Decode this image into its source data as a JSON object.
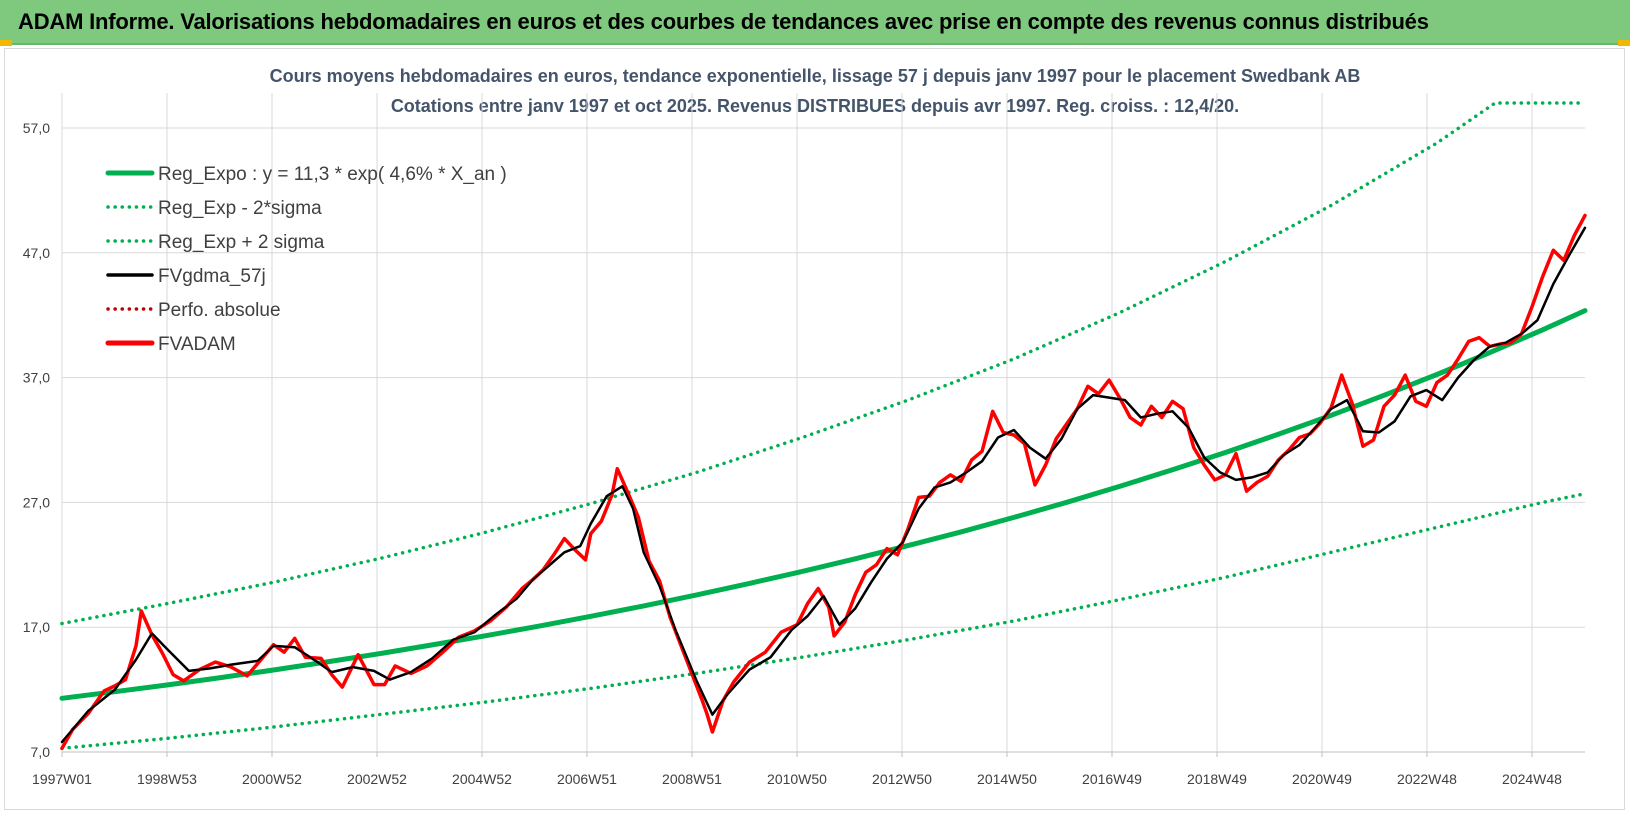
{
  "banner": {
    "title": "ADAM Informe. Valorisations hebdomadaires en euros et des courbes de tendances avec prise en compte des revenus connus distribués"
  },
  "chart_data": {
    "type": "line",
    "title": "Cours moyens hebdomadaires en euros, tendance exponentielle, lissage 57 j depuis janv 1997 pour le placement Swedbank AB",
    "subtitle": "Cotations entre janv 1997 et oct 2025. Revenus DISTRIBUES depuis avr 1997. Reg. croiss. : 12,4/20.",
    "xlabel": "",
    "ylabel": "",
    "x_tick_labels": [
      "1997W01",
      "1998W53",
      "2000W52",
      "2002W52",
      "2004W52",
      "2006W51",
      "2008W51",
      "2010W50",
      "2012W50",
      "2014W50",
      "2016W49",
      "2018W49",
      "2020W49",
      "2022W48",
      "2024W48"
    ],
    "x_range": [
      1997.0,
      2025.8
    ],
    "ylim": [
      7,
      57
    ],
    "y_tick_labels": [
      "7,0",
      "17,0",
      "27,0",
      "37,0",
      "47,0",
      "57,0"
    ],
    "y_ticks": [
      7,
      17,
      27,
      37,
      47,
      57
    ],
    "grid": true,
    "legend_position": "top-left",
    "series": [
      {
        "name": "Reg_Expo : y = 11,3 * exp( 4,6% *  X_an )",
        "style": "solid",
        "color": "#00b050",
        "x": [
          1997,
          1998,
          1999,
          2000,
          2001,
          2002,
          2003,
          2004,
          2005,
          2006,
          2007,
          2008,
          2009,
          2010,
          2011,
          2012,
          2013,
          2014,
          2015,
          2016,
          2017,
          2018,
          2019,
          2020,
          2021,
          2022,
          2023,
          2024,
          2025,
          2025.8
        ],
        "y": [
          11.3,
          11.83,
          12.38,
          12.96,
          13.57,
          14.21,
          14.88,
          15.58,
          16.31,
          17.07,
          17.87,
          18.71,
          19.59,
          20.51,
          21.47,
          22.48,
          23.54,
          24.64,
          25.8,
          27.01,
          28.28,
          29.61,
          31.0,
          32.46,
          33.98,
          35.58,
          37.25,
          39.0,
          40.83,
          42.37
        ]
      },
      {
        "name": "Reg_Exp - 2*sigma",
        "style": "dotted",
        "color": "#00b050",
        "x": [
          1997,
          1999,
          2001,
          2003,
          2005,
          2007,
          2009,
          2011,
          2013,
          2015,
          2017,
          2019,
          2021,
          2023,
          2025,
          2025.8
        ],
        "y": [
          7.3,
          8.1,
          9.0,
          10.0,
          11.0,
          12.1,
          13.3,
          14.6,
          16.0,
          17.5,
          19.2,
          21.0,
          23.0,
          25.0,
          27.0,
          27.7
        ]
      },
      {
        "name": "Reg_Exp + 2 sigma",
        "style": "dotted",
        "color": "#00b050",
        "x": [
          1997,
          1999,
          2001,
          2003,
          2005,
          2007,
          2009,
          2011,
          2013,
          2015,
          2017,
          2019,
          2021,
          2023,
          2024.1,
          2025.8
        ],
        "y": [
          17.3,
          18.9,
          20.6,
          22.5,
          24.6,
          26.9,
          29.4,
          32.2,
          35.2,
          38.5,
          42.2,
          46.3,
          50.8,
          55.8,
          59.0,
          59.0
        ]
      },
      {
        "name": "FVgdma_57j",
        "style": "solid",
        "color": "#000000",
        "x": [
          1997,
          1997.5,
          1998,
          1998.4,
          1998.7,
          1999,
          1999.4,
          1999.8,
          2000.2,
          2000.7,
          2001,
          2001.4,
          2001.8,
          2002.1,
          2002.5,
          2002.9,
          2003.2,
          2003.6,
          2004,
          2004.4,
          2004.8,
          2005.2,
          2005.6,
          2005.9,
          2006.2,
          2006.5,
          2006.8,
          2007,
          2007.3,
          2007.6,
          2007.8,
          2008,
          2008.3,
          2008.6,
          2009,
          2009.3,
          2009.6,
          2010,
          2010.4,
          2010.8,
          2011.1,
          2011.4,
          2011.7,
          2012,
          2012.3,
          2012.6,
          2012.9,
          2013.2,
          2013.5,
          2013.8,
          2014.1,
          2014.4,
          2014.7,
          2015,
          2015.3,
          2015.6,
          2015.9,
          2016.2,
          2016.5,
          2016.8,
          2017.1,
          2017.4,
          2017.7,
          2018,
          2018.3,
          2018.6,
          2018.9,
          2019.2,
          2019.5,
          2019.8,
          2020.1,
          2020.4,
          2020.7,
          2021,
          2021.3,
          2021.6,
          2021.9,
          2022.2,
          2022.5,
          2022.8,
          2023.1,
          2023.4,
          2023.7,
          2024,
          2024.3,
          2024.6,
          2024.9,
          2025.2,
          2025.5,
          2025.8
        ],
        "y": [
          7.8,
          10.3,
          12.0,
          14.4,
          16.5,
          15.2,
          13.5,
          13.7,
          14.0,
          14.3,
          15.5,
          15.4,
          14.3,
          13.4,
          13.8,
          13.5,
          12.8,
          13.4,
          14.5,
          16.0,
          16.6,
          18.0,
          19.3,
          20.8,
          21.9,
          23.0,
          23.5,
          25.3,
          27.5,
          28.3,
          26.5,
          23.0,
          20.3,
          16.8,
          12.7,
          10.0,
          11.7,
          13.6,
          14.6,
          16.8,
          17.9,
          19.5,
          17.2,
          18.5,
          20.6,
          22.5,
          23.8,
          26.5,
          28.2,
          28.6,
          29.4,
          30.3,
          32.2,
          32.8,
          31.4,
          30.5,
          32.1,
          34.5,
          35.6,
          35.4,
          35.2,
          33.8,
          34.1,
          34.3,
          33.0,
          30.6,
          29.4,
          28.8,
          29.0,
          29.4,
          30.8,
          31.6,
          33.0,
          34.5,
          35.2,
          32.7,
          32.6,
          33.5,
          35.5,
          36.0,
          35.2,
          37.0,
          38.4,
          39.5,
          39.8,
          40.5,
          41.6,
          44.5,
          46.8,
          49.0
        ]
      },
      {
        "name": "Perfo. absolue",
        "style": "dotted",
        "color": "#c00000",
        "x": [],
        "y": []
      },
      {
        "name": "FVADAM",
        "style": "solid",
        "color": "#ff0000",
        "x": [
          1997,
          1997.2,
          1997.5,
          1997.8,
          1998,
          1998.2,
          1998.4,
          1998.5,
          1998.7,
          1998.9,
          1999.1,
          1999.3,
          1999.6,
          1999.9,
          2000.2,
          2000.5,
          2000.8,
          2001,
          2001.2,
          2001.4,
          2001.6,
          2001.9,
          2002.1,
          2002.3,
          2002.6,
          2002.9,
          2003.1,
          2003.3,
          2003.6,
          2003.9,
          2004.2,
          2004.5,
          2004.8,
          2005.1,
          2005.4,
          2005.7,
          2005.9,
          2006.1,
          2006.3,
          2006.5,
          2006.7,
          2006.9,
          2007,
          2007.2,
          2007.4,
          2007.5,
          2007.7,
          2007.9,
          2008.1,
          2008.3,
          2008.5,
          2008.7,
          2008.9,
          2009.1,
          2009.2,
          2009.3,
          2009.5,
          2009.7,
          2010,
          2010.3,
          2010.6,
          2010.9,
          2011.1,
          2011.3,
          2011.5,
          2011.6,
          2011.8,
          2012,
          2012.2,
          2012.4,
          2012.6,
          2012.8,
          2013,
          2013.2,
          2013.4,
          2013.6,
          2013.8,
          2014,
          2014.2,
          2014.4,
          2014.6,
          2014.8,
          2015,
          2015.2,
          2015.4,
          2015.6,
          2015.8,
          2016,
          2016.2,
          2016.4,
          2016.6,
          2016.8,
          2017,
          2017.2,
          2017.4,
          2017.6,
          2017.8,
          2018,
          2018.2,
          2018.4,
          2018.6,
          2018.8,
          2019,
          2019.2,
          2019.4,
          2019.6,
          2019.8,
          2020,
          2020.2,
          2020.4,
          2020.6,
          2020.8,
          2021,
          2021.2,
          2021.4,
          2021.6,
          2021.8,
          2022,
          2022.2,
          2022.4,
          2022.6,
          2022.8,
          2023,
          2023.2,
          2023.4,
          2023.6,
          2023.8,
          2024,
          2024.2,
          2024.4,
          2024.6,
          2024.8,
          2025,
          2025.2,
          2025.4,
          2025.6,
          2025.8
        ],
        "y": [
          7.3,
          8.8,
          10.1,
          11.9,
          12.3,
          12.8,
          15.5,
          18.3,
          16.4,
          14.9,
          13.2,
          12.7,
          13.6,
          14.2,
          13.8,
          13.1,
          14.6,
          15.6,
          15.0,
          16.1,
          14.6,
          14.5,
          13.2,
          12.2,
          14.8,
          12.4,
          12.4,
          13.9,
          13.3,
          13.9,
          15.0,
          16.2,
          16.7,
          17.5,
          18.6,
          20.1,
          20.8,
          21.6,
          22.8,
          24.1,
          23.2,
          22.4,
          24.5,
          25.5,
          27.6,
          29.7,
          27.8,
          25.8,
          22.3,
          20.7,
          17.8,
          15.6,
          13.4,
          11.2,
          10.0,
          8.6,
          11.1,
          12.6,
          14.2,
          15.0,
          16.6,
          17.2,
          18.9,
          20.1,
          18.6,
          16.3,
          17.4,
          19.6,
          21.4,
          22.0,
          23.3,
          22.8,
          24.9,
          27.4,
          27.5,
          28.6,
          29.2,
          28.7,
          30.4,
          31.1,
          34.3,
          32.6,
          32.4,
          31.7,
          28.4,
          30.0,
          32.1,
          33.3,
          34.5,
          36.3,
          35.7,
          36.8,
          35.4,
          33.8,
          33.2,
          34.7,
          33.8,
          35.1,
          34.5,
          31.4,
          30.0,
          28.8,
          29.2,
          30.9,
          27.9,
          28.6,
          29.1,
          30.4,
          31.2,
          32.2,
          32.5,
          33.4,
          34.6,
          37.2,
          34.9,
          31.5,
          32.0,
          34.7,
          35.6,
          37.2,
          35.1,
          34.7,
          36.6,
          37.2,
          38.5,
          39.9,
          40.2,
          39.5,
          39.7,
          39.8,
          40.5,
          42.7,
          45.1,
          47.2,
          46.4,
          48.4,
          50.0
        ]
      }
    ]
  }
}
